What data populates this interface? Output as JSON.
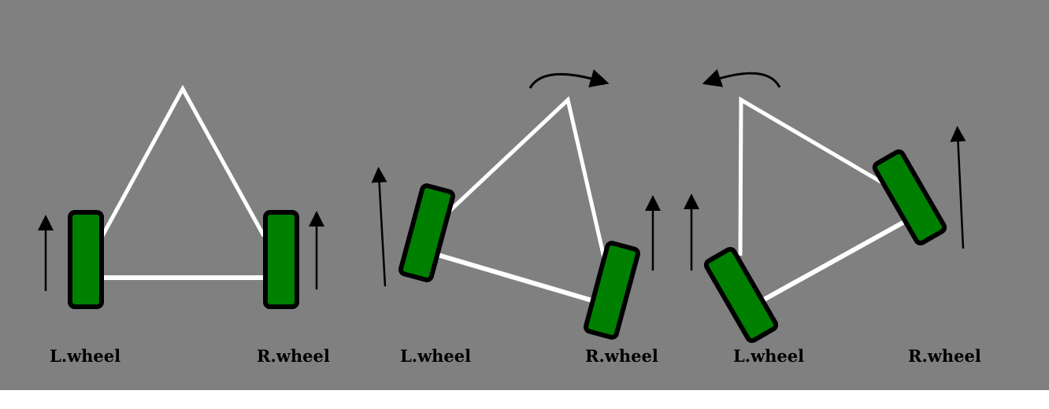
{
  "colors": {
    "background": "#808080",
    "frame": "#ffffff",
    "wheel_fill": "#008000",
    "wheel_outline": "#000000",
    "arrow": "#000000"
  },
  "panels": [
    {
      "id": "straight",
      "left_label": "L.wheel",
      "right_label": "R.wheel",
      "rotation": "none"
    },
    {
      "id": "turn-right",
      "left_label": "L.wheel",
      "right_label": "R.wheel",
      "rotation": "clockwise"
    },
    {
      "id": "turn-left",
      "left_label": "L.wheel",
      "right_label": "R.wheel",
      "rotation": "counterclockwise"
    }
  ]
}
